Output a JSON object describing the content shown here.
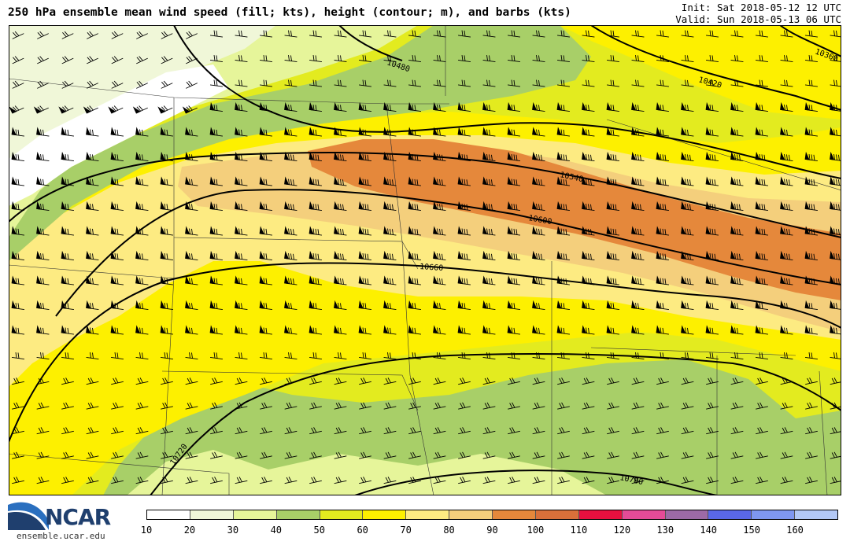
{
  "title": "250 hPa ensemble mean wind speed (fill; kts), height (contour; m), and barbs (kts)",
  "init": "Init: Sat 2018-05-12 12 UTC",
  "valid": "Valid: Sun 2018-05-13 06 UTC",
  "logo_text": "NCAR",
  "logo_url": "ensemble.ucar.edu",
  "colorbar": {
    "labels": [
      "10",
      "20",
      "30",
      "40",
      "50",
      "60",
      "70",
      "80",
      "90",
      "100",
      "110",
      "120",
      "130",
      "140",
      "150",
      "160"
    ],
    "colors": [
      "#ffffff",
      "#f0f7d8",
      "#e6f59a",
      "#a8cf68",
      "#e3eb1f",
      "#fdf000",
      "#fdeb82",
      "#f4cf7c",
      "#e5883b",
      "#d9703a",
      "#e8103f",
      "#e44b97",
      "#9c6aa6",
      "#5a67e8",
      "#7f97f0",
      "#b3c8f5"
    ]
  },
  "contours": [
    {
      "label": "10360"
    },
    {
      "label": "10420"
    },
    {
      "label": "10480"
    },
    {
      "label": "10540"
    },
    {
      "label": "10600"
    },
    {
      "label": "10660"
    },
    {
      "label": "10720"
    },
    {
      "label": "10780"
    }
  ]
}
